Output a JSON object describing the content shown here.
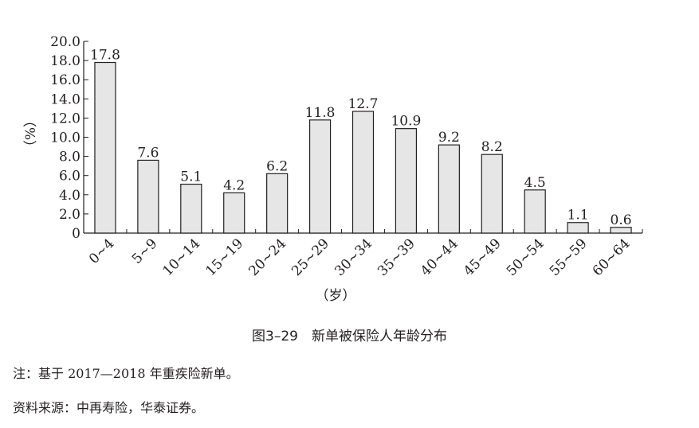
{
  "chart_data": {
    "type": "bar",
    "categories": [
      "0~4",
      "5~9",
      "10~14",
      "15~19",
      "20~24",
      "25~29",
      "30~34",
      "35~39",
      "40~44",
      "45~49",
      "50~54",
      "55~59",
      "60~64"
    ],
    "values": [
      17.8,
      7.6,
      5.1,
      4.2,
      6.2,
      11.8,
      12.7,
      10.9,
      9.2,
      8.2,
      4.5,
      1.1,
      0.6
    ],
    "data_labels": [
      "17.8",
      "7.6",
      "5.1",
      "4.2",
      "6.2",
      "11.8",
      "12.7",
      "10.9",
      "9.2",
      "8.2",
      "4.5",
      "1.1",
      "0.6"
    ],
    "y_ticks": [
      "0",
      "2.0",
      "4.0",
      "6.0",
      "8.0",
      "10.0",
      "12.0",
      "14.0",
      "16.0",
      "18.0",
      "20.0"
    ],
    "ylim": [
      0,
      20
    ],
    "ylabel": "（%）",
    "xlabel": "（岁）",
    "bar_fill": "#e6e6e6",
    "bar_stroke": "#231f20",
    "grid": false
  },
  "caption": "图3–29　新单被保险人年龄分布",
  "notes": {
    "note": "注：基于 2017—2018 年重疾险新单。",
    "source": "资料来源：中再寿险，华泰证券。"
  }
}
